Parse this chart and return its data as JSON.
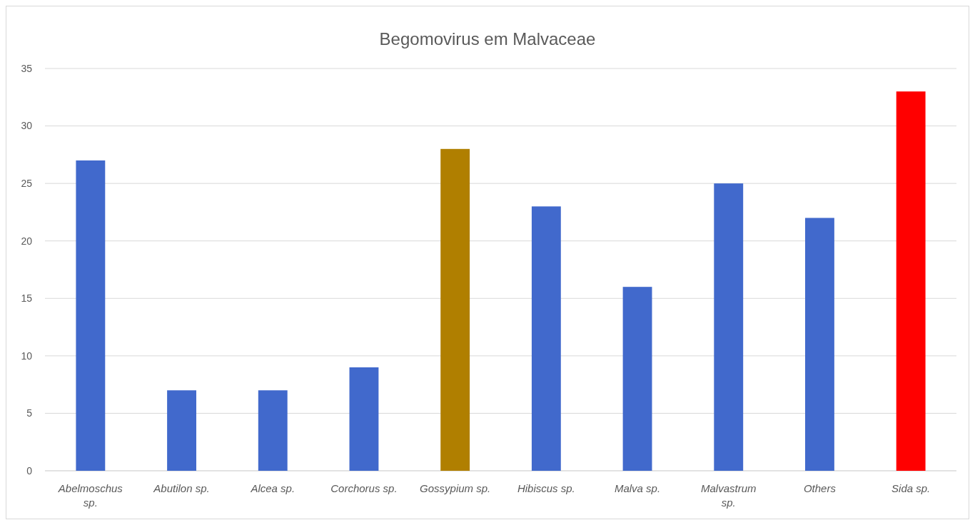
{
  "chart_data": {
    "type": "bar",
    "title": "Begomovirus em Malvaceae",
    "categories": [
      "Abelmoschus sp.",
      "Abutilon sp.",
      "Alcea sp.",
      "Corchorus sp.",
      "Gossypium sp.",
      "Hibiscus sp.",
      "Malva sp.",
      "Malvastrum sp.",
      "Others",
      "Sida sp."
    ],
    "values": [
      27,
      7,
      7,
      9,
      28,
      23,
      16,
      25,
      22,
      33
    ],
    "colors": [
      "#4169cc",
      "#4169cc",
      "#4169cc",
      "#4169cc",
      "#b07f00",
      "#4169cc",
      "#4169cc",
      "#4169cc",
      "#4169cc",
      "#ff0000"
    ],
    "ylim": [
      0,
      35
    ],
    "yticks": [
      0,
      5,
      10,
      15,
      20,
      25,
      30,
      35
    ],
    "grid": "y"
  }
}
